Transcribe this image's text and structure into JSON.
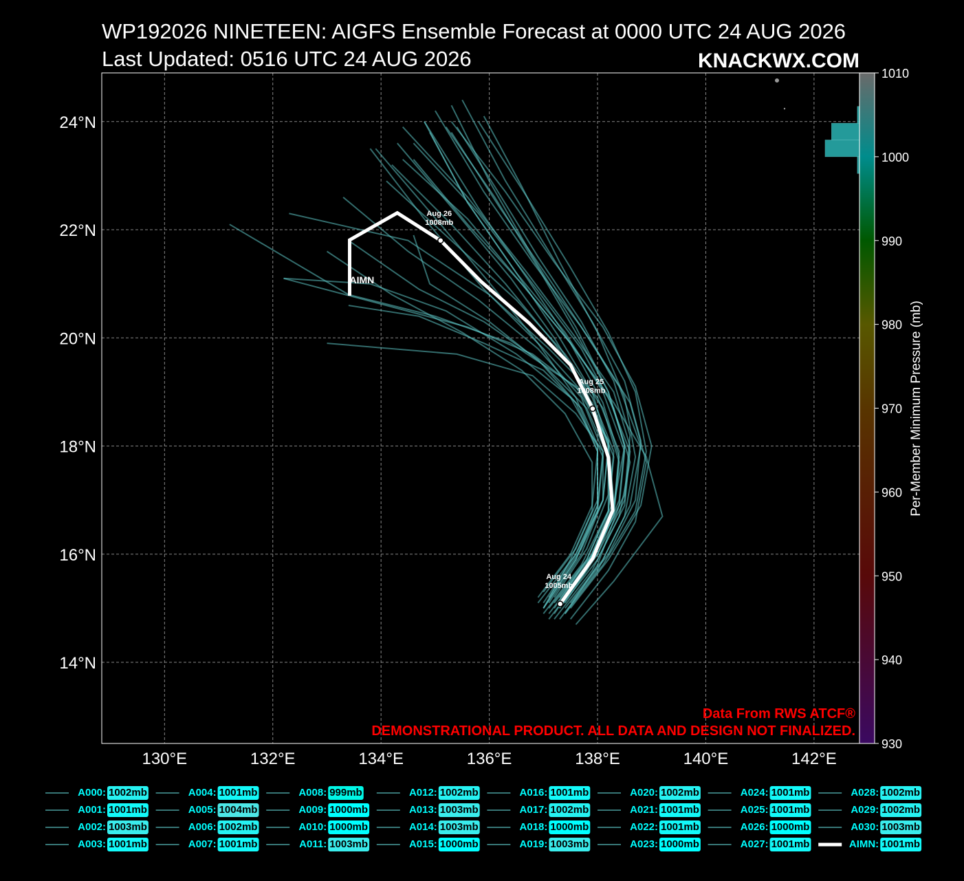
{
  "chart_data": {
    "type": "track",
    "title": "WP192026 NINETEEN: AIGFS Ensemble Forecast at 0000 UTC 24 AUG 2026",
    "subtitle": "Last Updated: 0516 UTC 24 AUG 2026",
    "watermark": "KNACKWX.COM",
    "notes": [
      "Data From RWS ATCF®",
      "DEMONSTRATIONAL PRODUCT. ALL DATA AND DESIGN NOT FINALIZED."
    ],
    "xlim": [
      128.84,
      142.84
    ],
    "ylim": [
      12.5,
      24.9
    ],
    "xticks": [
      {
        "value": 130,
        "label": "130°E"
      },
      {
        "value": 132,
        "label": "132°E"
      },
      {
        "value": 134,
        "label": "134°E"
      },
      {
        "value": 136,
        "label": "136°E"
      },
      {
        "value": 138,
        "label": "138°E"
      },
      {
        "value": 140,
        "label": "140°E"
      },
      {
        "value": 142,
        "label": "142°E"
      }
    ],
    "yticks": [
      {
        "value": 14,
        "label": "14°N"
      },
      {
        "value": 16,
        "label": "16°N"
      },
      {
        "value": 18,
        "label": "18°N"
      },
      {
        "value": 20,
        "label": "20°N"
      },
      {
        "value": 22,
        "label": "22°N"
      },
      {
        "value": 24,
        "label": "24°N"
      }
    ],
    "grid": true,
    "member_color": "#5cc4c4",
    "colorbar": {
      "label": "Per-Member Minimum Pressure (mb)",
      "lim": [
        930,
        1010
      ],
      "ticks": [
        930,
        940,
        950,
        960,
        970,
        980,
        990,
        1000,
        1010
      ],
      "colormap": [
        [
          930,
          "#6a10b0"
        ],
        [
          950,
          "#a01010"
        ],
        [
          970,
          "#a06000"
        ],
        [
          980,
          "#a0a000"
        ],
        [
          990,
          "#00a000"
        ],
        [
          1000,
          "#00ffff"
        ],
        [
          1010,
          "#c0c0c0"
        ]
      ]
    },
    "histogram": {
      "bins": [
        998,
        1000,
        1002,
        1004,
        1006
      ],
      "counts": [
        1,
        16,
        13,
        1
      ],
      "color": "#2bb5b5"
    },
    "series": [
      {
        "name": "A000:",
        "pressure": 1002,
        "pressure_label": "1002mb",
        "lon": [
          137.1,
          137.8,
          138.2,
          138.3,
          137.9,
          137.0,
          135.9,
          134.8,
          133.8
        ],
        "lat": [
          15.0,
          15.9,
          16.8,
          17.8,
          18.8,
          19.8,
          20.9,
          22.2,
          23.5
        ]
      },
      {
        "name": "A001:",
        "pressure": 1001,
        "pressure_label": "1001mb",
        "lon": [
          137.4,
          138.0,
          138.4,
          138.5,
          138.1,
          137.4,
          136.5,
          135.6,
          134.9
        ],
        "lat": [
          14.9,
          15.8,
          16.9,
          17.9,
          19.0,
          20.1,
          21.2,
          22.5,
          23.8
        ]
      },
      {
        "name": "A002:",
        "pressure": 1003,
        "pressure_label": "1003mb",
        "lon": [
          137.0,
          137.6,
          138.0,
          138.0,
          137.5,
          136.5,
          135.2,
          133.8,
          132.2
        ],
        "lat": [
          15.3,
          16.1,
          17.0,
          18.0,
          18.9,
          19.7,
          20.5,
          21.0,
          21.1
        ]
      },
      {
        "name": "A003:",
        "pressure": 1001,
        "pressure_label": "1001mb",
        "lon": [
          137.5,
          138.2,
          138.7,
          138.9,
          138.6,
          137.9,
          137.1,
          136.2,
          135.3
        ],
        "lat": [
          14.8,
          15.7,
          16.6,
          17.7,
          18.8,
          19.9,
          21.1,
          22.4,
          23.8
        ]
      },
      {
        "name": "A004:",
        "pressure": 1001,
        "pressure_label": "1001mb",
        "lon": [
          137.2,
          137.9,
          138.3,
          138.2,
          137.6,
          136.4,
          135.0,
          133.4,
          131.2
        ],
        "lat": [
          15.1,
          16.0,
          17.0,
          18.1,
          19.1,
          19.9,
          20.4,
          20.8,
          22.1
        ]
      },
      {
        "name": "A005:",
        "pressure": 1004,
        "pressure_label": "1004mb",
        "lon": [
          137.6,
          138.3,
          139.2,
          138.9,
          138.3,
          137.5,
          136.6,
          135.6,
          134.6
        ],
        "lat": [
          14.7,
          15.5,
          16.7,
          17.8,
          18.8,
          19.9,
          21.0,
          22.1,
          23.3
        ]
      },
      {
        "name": "A006:",
        "pressure": 1002,
        "pressure_label": "1002mb",
        "lon": [
          137.0,
          137.6,
          138.0,
          138.1,
          137.7,
          136.9,
          135.8,
          134.5,
          133.3
        ],
        "lat": [
          15.0,
          15.9,
          16.9,
          17.9,
          18.9,
          19.8,
          20.7,
          21.6,
          22.6
        ]
      },
      {
        "name": "A007:",
        "pressure": 1001,
        "pressure_label": "1001mb",
        "lon": [
          136.9,
          137.6,
          138.1,
          138.2,
          137.9,
          137.3,
          136.5,
          135.6,
          134.8
        ],
        "lat": [
          15.1,
          16.0,
          17.0,
          18.0,
          19.0,
          20.0,
          21.2,
          22.5,
          24.0
        ]
      },
      {
        "name": "A008:",
        "pressure": 999,
        "pressure_label": "999mb",
        "lon": [
          137.3,
          137.9,
          138.3,
          138.4,
          138.0,
          137.1,
          136.0,
          134.5,
          132.3
        ],
        "lat": [
          15.0,
          15.9,
          16.8,
          17.9,
          18.9,
          19.8,
          20.8,
          21.8,
          22.3
        ]
      },
      {
        "name": "A009:",
        "pressure": 1000,
        "pressure_label": "1000mb",
        "lon": [
          137.2,
          137.8,
          138.3,
          138.5,
          138.2,
          137.6,
          136.8,
          136.0,
          135.3
        ],
        "lat": [
          14.9,
          15.8,
          16.9,
          18.0,
          19.0,
          20.2,
          21.5,
          22.9,
          24.3
        ]
      },
      {
        "name": "A010:",
        "pressure": 1000,
        "pressure_label": "1000mb",
        "lon": [
          137.1,
          137.7,
          138.1,
          138.1,
          137.6,
          136.8,
          135.4,
          133.0
        ],
        "lat": [
          15.2,
          16.1,
          17.0,
          17.9,
          18.6,
          19.3,
          19.7,
          19.9
        ]
      },
      {
        "name": "A011:",
        "pressure": 1003,
        "pressure_label": "1003mb",
        "lon": [
          137.4,
          138.1,
          138.6,
          138.8,
          138.4,
          137.7,
          136.8,
          135.9,
          135.0
        ],
        "lat": [
          15.0,
          15.9,
          16.9,
          18.0,
          19.1,
          20.2,
          21.4,
          22.7,
          24.2
        ]
      },
      {
        "name": "A012:",
        "pressure": 1002,
        "pressure_label": "1002mb",
        "lon": [
          137.0,
          137.5,
          137.9,
          137.9,
          137.4,
          136.6,
          135.5,
          134.2,
          133.0
        ],
        "lat": [
          15.0,
          15.9,
          16.8,
          17.7,
          18.6,
          19.4,
          20.1,
          20.8,
          21.6
        ]
      },
      {
        "name": "A013:",
        "pressure": 1003,
        "pressure_label": "1003mb",
        "lon": [
          137.3,
          138.0,
          138.5,
          138.7,
          138.5,
          138.0,
          137.3,
          136.6,
          135.9
        ],
        "lat": [
          14.8,
          15.7,
          16.7,
          17.8,
          18.9,
          20.1,
          21.4,
          22.8,
          24.1
        ]
      },
      {
        "name": "A014:",
        "pressure": 1003,
        "pressure_label": "1003mb",
        "lon": [
          136.9,
          137.5,
          137.9,
          138.0,
          137.6,
          136.9,
          136.1,
          135.1,
          133.9
        ],
        "lat": [
          15.2,
          16.0,
          16.9,
          17.9,
          18.9,
          19.9,
          20.9,
          22.1,
          23.5
        ]
      },
      {
        "name": "A015:",
        "pressure": 1000,
        "pressure_label": "1000mb",
        "lon": [
          137.5,
          138.2,
          138.7,
          138.8,
          138.5,
          137.9,
          137.1,
          136.3,
          135.5
        ],
        "lat": [
          15.1,
          16.0,
          17.0,
          18.1,
          19.2,
          20.3,
          21.6,
          22.9,
          24.4
        ]
      },
      {
        "name": "A016:",
        "pressure": 1001,
        "pressure_label": "1001mb",
        "lon": [
          137.2,
          137.8,
          138.2,
          138.2,
          137.8,
          137.0,
          136.0,
          134.9,
          134.6
        ],
        "lat": [
          15.0,
          15.9,
          16.8,
          17.8,
          18.7,
          19.5,
          20.3,
          21.0,
          21.9
        ]
      },
      {
        "name": "A017:",
        "pressure": 1002,
        "pressure_label": "1002mb",
        "lon": [
          137.1,
          137.8,
          138.3,
          138.4,
          138.1,
          137.5,
          136.7,
          135.8,
          134.8
        ],
        "lat": [
          14.9,
          15.8,
          16.8,
          17.8,
          18.8,
          19.9,
          21.1,
          22.4,
          24.0
        ]
      },
      {
        "name": "A018:",
        "pressure": 1000,
        "pressure_label": "1000mb",
        "lon": [
          137.4,
          138.0,
          138.4,
          138.5,
          138.2,
          137.6,
          136.9,
          136.1,
          135.2
        ],
        "lat": [
          15.1,
          16.0,
          17.0,
          18.0,
          19.0,
          20.1,
          21.3,
          22.6,
          23.9
        ]
      },
      {
        "name": "A019:",
        "pressure": 1003,
        "pressure_label": "1003mb",
        "lon": [
          137.0,
          137.6,
          138.0,
          138.0,
          137.6,
          136.9,
          135.9,
          134.7,
          133.4
        ],
        "lat": [
          15.1,
          16.0,
          16.9,
          17.9,
          18.8,
          19.6,
          20.3,
          20.9,
          21.8
        ]
      },
      {
        "name": "A020:",
        "pressure": 1002,
        "pressure_label": "1002mb",
        "lon": [
          137.3,
          138.0,
          138.5,
          138.6,
          138.3,
          137.7,
          136.9,
          136.1,
          135.4
        ],
        "lat": [
          15.2,
          16.1,
          17.1,
          18.2,
          19.2,
          20.3,
          21.5,
          22.8,
          23.9
        ]
      },
      {
        "name": "A021:",
        "pressure": 1001,
        "pressure_label": "1001mb",
        "lon": [
          137.2,
          137.9,
          138.4,
          138.6,
          138.3,
          137.7,
          136.8,
          135.8,
          134.6
        ],
        "lat": [
          14.8,
          15.7,
          16.7,
          17.7,
          18.7,
          19.8,
          21.0,
          22.3,
          23.6
        ]
      },
      {
        "name": "A022:",
        "pressure": 1001,
        "pressure_label": "1001mb",
        "lon": [
          137.0,
          137.7,
          138.2,
          138.3,
          137.9,
          137.2,
          136.3,
          135.3,
          134.2
        ],
        "lat": [
          14.9,
          15.8,
          16.8,
          17.9,
          18.9,
          19.9,
          21.0,
          22.1,
          23.2
        ]
      },
      {
        "name": "A023:",
        "pressure": 1000,
        "pressure_label": "1000mb",
        "lon": [
          137.4,
          138.1,
          138.7,
          138.9,
          138.7,
          138.2,
          137.5,
          136.7,
          135.8
        ],
        "lat": [
          14.9,
          15.8,
          16.8,
          17.9,
          19.0,
          20.1,
          21.3,
          22.6,
          24.0
        ]
      },
      {
        "name": "A024:",
        "pressure": 1001,
        "pressure_label": "1001mb",
        "lon": [
          137.1,
          137.7,
          138.1,
          138.2,
          137.8,
          137.2,
          136.4,
          135.4,
          134.3
        ],
        "lat": [
          15.1,
          16.0,
          17.0,
          18.0,
          19.0,
          20.0,
          21.1,
          22.3,
          23.6
        ]
      },
      {
        "name": "A025:",
        "pressure": 1001,
        "pressure_label": "1001mb",
        "lon": [
          137.3,
          138.0,
          138.5,
          138.6,
          138.2,
          137.5,
          136.6,
          135.6,
          134.4
        ],
        "lat": [
          15.0,
          15.9,
          16.9,
          17.9,
          18.9,
          19.9,
          21.0,
          22.2,
          23.3
        ]
      },
      {
        "name": "A026:",
        "pressure": 1000,
        "pressure_label": "1000mb",
        "lon": [
          137.2,
          137.8,
          138.2,
          138.2,
          137.7,
          136.8,
          135.6,
          134.1,
          132.2
        ],
        "lat": [
          15.2,
          16.1,
          17.1,
          18.1,
          19.0,
          19.7,
          20.2,
          20.6,
          21.1
        ]
      },
      {
        "name": "A027:",
        "pressure": 1001,
        "pressure_label": "1001mb",
        "lon": [
          137.5,
          138.2,
          138.8,
          139.0,
          138.7,
          138.1,
          137.2,
          136.3,
          135.3
        ],
        "lat": [
          15.0,
          15.9,
          16.9,
          18.0,
          19.1,
          20.2,
          21.4,
          22.7,
          24.0
        ]
      },
      {
        "name": "A028:",
        "pressure": 1002,
        "pressure_label": "1002mb",
        "lon": [
          137.1,
          137.8,
          138.3,
          138.4,
          138.1,
          137.4,
          136.5,
          135.3,
          134.1
        ],
        "lat": [
          14.8,
          15.7,
          16.7,
          17.7,
          18.7,
          19.7,
          20.7,
          21.8,
          22.9
        ]
      },
      {
        "name": "A029:",
        "pressure": 1002,
        "pressure_label": "1002mb",
        "lon": [
          137.0,
          137.6,
          138.0,
          138.1,
          137.7,
          137.0,
          135.9,
          134.7,
          133.4
        ],
        "lat": [
          15.0,
          15.9,
          16.8,
          17.8,
          18.7,
          19.4,
          19.9,
          20.4,
          20.6
        ]
      },
      {
        "name": "A030:",
        "pressure": 1003,
        "pressure_label": "1003mb",
        "lon": [
          137.3,
          138.0,
          138.5,
          138.6,
          138.3,
          137.6,
          136.7,
          135.6,
          134.4
        ],
        "lat": [
          15.1,
          16.0,
          17.0,
          18.0,
          19.0,
          20.0,
          21.2,
          22.6,
          23.9
        ]
      }
    ],
    "mean": {
      "name": "AIMN:",
      "track_label": "AIMN",
      "pressure": 1001,
      "pressure_label": "1001mb",
      "color": "#ffffff",
      "lon": [
        137.31,
        137.91,
        138.28,
        138.2,
        137.91,
        137.5,
        136.74,
        135.85,
        135.1,
        134.3,
        133.42,
        133.42
      ],
      "lat": [
        15.08,
        15.92,
        16.81,
        17.79,
        18.69,
        19.5,
        20.27,
        21.04,
        21.8,
        22.31,
        21.81,
        20.78
      ],
      "annotations": [
        {
          "date": "Aug 24",
          "pressure": "1005mb",
          "lon": 137.31,
          "lat": 15.08
        },
        {
          "date": "Aug 25",
          "pressure": "1008mb",
          "lon": 137.91,
          "lat": 18.69
        },
        {
          "date": "Aug 26",
          "pressure": "1008mb",
          "lon": 135.1,
          "lat": 21.8
        }
      ]
    }
  }
}
